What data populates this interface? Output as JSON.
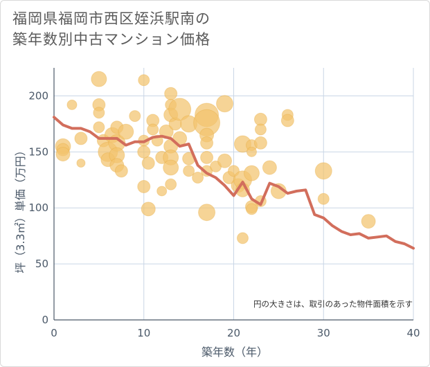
{
  "title_lines": [
    "福岡県福岡市西区姪浜駅南の",
    "築年数別中古マンション価格"
  ],
  "colors": {
    "bubble_fill": "#f2c46d",
    "bubble_stroke": "#e6a93c",
    "line": "#d26e5c",
    "grid": "#c9d6e6",
    "axis": "#4a5868"
  },
  "chart_data": {
    "type": "scatter",
    "xlabel": "築年数（年）",
    "ylabel": "坪（3.3㎡）単価（万円）",
    "xlim": [
      0,
      40
    ],
    "ylim": [
      0,
      225
    ],
    "x_ticks": [
      0,
      10,
      20,
      30,
      40
    ],
    "y_ticks": [
      0,
      50,
      100,
      150,
      200
    ],
    "grid": true,
    "annotation": "円の大きさは、取引のあった物件面積を示す",
    "bubbles": [
      {
        "x": 1,
        "y": 155,
        "r": 11
      },
      {
        "x": 1,
        "y": 152,
        "r": 9
      },
      {
        "x": 1,
        "y": 148,
        "r": 10
      },
      {
        "x": 2,
        "y": 192,
        "r": 7
      },
      {
        "x": 3,
        "y": 162,
        "r": 9
      },
      {
        "x": 3,
        "y": 140,
        "r": 6
      },
      {
        "x": 5,
        "y": 215,
        "r": 11
      },
      {
        "x": 5,
        "y": 192,
        "r": 9
      },
      {
        "x": 5,
        "y": 185,
        "r": 8
      },
      {
        "x": 5,
        "y": 172,
        "r": 8
      },
      {
        "x": 5.5,
        "y": 160,
        "r": 9
      },
      {
        "x": 6,
        "y": 150,
        "r": 14
      },
      {
        "x": 6,
        "y": 143,
        "r": 10
      },
      {
        "x": 6.5,
        "y": 165,
        "r": 11
      },
      {
        "x": 7,
        "y": 172,
        "r": 9
      },
      {
        "x": 7,
        "y": 158,
        "r": 12
      },
      {
        "x": 7,
        "y": 147,
        "r": 11
      },
      {
        "x": 7,
        "y": 138,
        "r": 10
      },
      {
        "x": 7.5,
        "y": 133,
        "r": 9
      },
      {
        "x": 8,
        "y": 168,
        "r": 11
      },
      {
        "x": 9,
        "y": 182,
        "r": 8
      },
      {
        "x": 10,
        "y": 214,
        "r": 8
      },
      {
        "x": 10,
        "y": 160,
        "r": 8
      },
      {
        "x": 10,
        "y": 150,
        "r": 9
      },
      {
        "x": 10,
        "y": 119,
        "r": 9
      },
      {
        "x": 10.5,
        "y": 140,
        "r": 9
      },
      {
        "x": 10.5,
        "y": 99,
        "r": 10
      },
      {
        "x": 11,
        "y": 178,
        "r": 9
      },
      {
        "x": 11,
        "y": 170,
        "r": 8
      },
      {
        "x": 11.5,
        "y": 160,
        "r": 8
      },
      {
        "x": 12,
        "y": 145,
        "r": 9
      },
      {
        "x": 12,
        "y": 115,
        "r": 7
      },
      {
        "x": 12.5,
        "y": 168,
        "r": 10
      },
      {
        "x": 13,
        "y": 202,
        "r": 9
      },
      {
        "x": 13,
        "y": 192,
        "r": 8
      },
      {
        "x": 13,
        "y": 183,
        "r": 10
      },
      {
        "x": 13,
        "y": 155,
        "r": 10
      },
      {
        "x": 13,
        "y": 145,
        "r": 11
      },
      {
        "x": 13,
        "y": 136,
        "r": 11
      },
      {
        "x": 13,
        "y": 121,
        "r": 8
      },
      {
        "x": 13.5,
        "y": 175,
        "r": 9
      },
      {
        "x": 14,
        "y": 188,
        "r": 16
      },
      {
        "x": 14,
        "y": 162,
        "r": 10
      },
      {
        "x": 15,
        "y": 175,
        "r": 12
      },
      {
        "x": 15,
        "y": 144,
        "r": 9
      },
      {
        "x": 15,
        "y": 133,
        "r": 8
      },
      {
        "x": 16,
        "y": 127,
        "r": 8
      },
      {
        "x": 17,
        "y": 183,
        "r": 17
      },
      {
        "x": 17,
        "y": 176,
        "r": 19
      },
      {
        "x": 17,
        "y": 165,
        "r": 10
      },
      {
        "x": 17,
        "y": 158,
        "r": 9
      },
      {
        "x": 17,
        "y": 145,
        "r": 9
      },
      {
        "x": 17,
        "y": 133,
        "r": 8
      },
      {
        "x": 17,
        "y": 96,
        "r": 12
      },
      {
        "x": 18,
        "y": 137,
        "r": 8
      },
      {
        "x": 19,
        "y": 193,
        "r": 12
      },
      {
        "x": 19,
        "y": 142,
        "r": 10
      },
      {
        "x": 19.5,
        "y": 127,
        "r": 9
      },
      {
        "x": 20,
        "y": 133,
        "r": 8
      },
      {
        "x": 20.5,
        "y": 120,
        "r": 10
      },
      {
        "x": 21,
        "y": 157,
        "r": 12
      },
      {
        "x": 21,
        "y": 125,
        "r": 13
      },
      {
        "x": 21,
        "y": 116,
        "r": 10
      },
      {
        "x": 21,
        "y": 73,
        "r": 8
      },
      {
        "x": 22,
        "y": 156,
        "r": 8
      },
      {
        "x": 22,
        "y": 150,
        "r": 7
      },
      {
        "x": 22,
        "y": 131,
        "r": 11
      },
      {
        "x": 22,
        "y": 101,
        "r": 9
      },
      {
        "x": 22,
        "y": 99,
        "r": 8
      },
      {
        "x": 23,
        "y": 179,
        "r": 9
      },
      {
        "x": 23,
        "y": 170,
        "r": 8
      },
      {
        "x": 23,
        "y": 158,
        "r": 9
      },
      {
        "x": 23,
        "y": 106,
        "r": 8
      },
      {
        "x": 24,
        "y": 136,
        "r": 10
      },
      {
        "x": 25,
        "y": 115,
        "r": 11
      },
      {
        "x": 26,
        "y": 183,
        "r": 8
      },
      {
        "x": 26,
        "y": 178,
        "r": 9
      },
      {
        "x": 30,
        "y": 133,
        "r": 12
      },
      {
        "x": 30,
        "y": 108,
        "r": 8
      },
      {
        "x": 35,
        "y": 88,
        "r": 10
      }
    ],
    "series": [
      {
        "x": [
          0,
          1,
          2,
          3,
          4,
          5,
          6,
          7,
          8,
          9,
          10,
          11,
          12,
          13,
          14,
          15,
          16,
          17,
          18,
          19,
          20,
          21,
          22,
          23,
          24,
          25,
          26,
          27,
          28,
          29,
          30,
          31,
          32,
          33,
          34,
          35,
          36,
          37,
          38,
          39,
          40
        ],
        "y": [
          181,
          174,
          171,
          171,
          168,
          162,
          162,
          162,
          156,
          159,
          159,
          163,
          164,
          162,
          155,
          157,
          138,
          131,
          127,
          120,
          111,
          123,
          108,
          103,
          122,
          119,
          113,
          115,
          116,
          94,
          91,
          84,
          79,
          76,
          77,
          73,
          74,
          75,
          70,
          68,
          64
        ]
      }
    ]
  }
}
